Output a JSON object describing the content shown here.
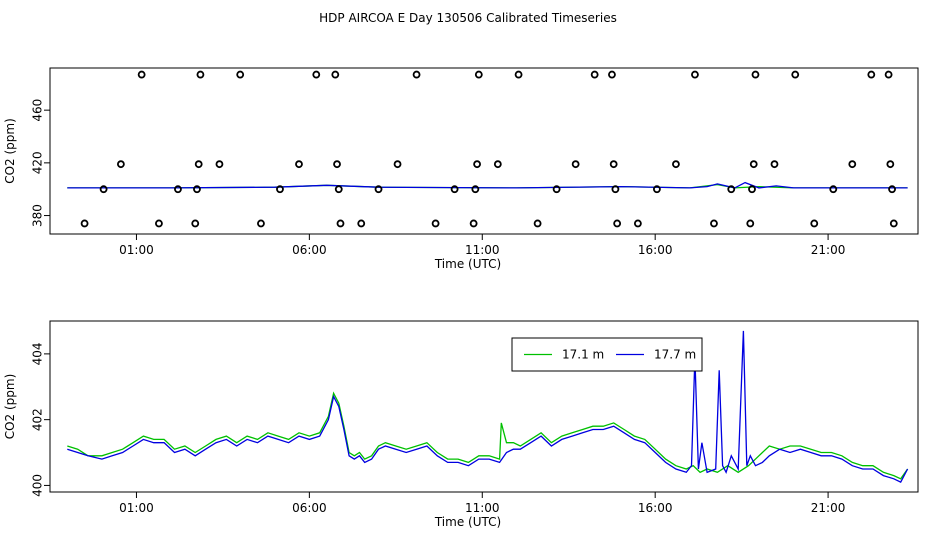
{
  "page_title": "HDP AIRCOA E  Day 130506  Calibrated Timeseries",
  "colors": {
    "green": "#00c000",
    "blue": "#0000e0",
    "black": "#000000"
  },
  "chart_data": [
    {
      "type": "scatter",
      "xlabel": "Time (UTC)",
      "ylabel": "CO2 (ppm)",
      "xlim": [
        -1.5,
        23.6
      ],
      "ylim": [
        366,
        492
      ],
      "x_ticks": [
        1,
        6,
        11,
        16,
        21
      ],
      "x_tick_labels": [
        "01:00",
        "06:00",
        "11:00",
        "16:00",
        "21:00"
      ],
      "y_ticks": [
        380,
        420,
        460
      ],
      "y_tick_labels": [
        "380",
        "420",
        "460"
      ],
      "points": [
        {
          "x": -0.5,
          "y": 374
        },
        {
          "x": 0.05,
          "y": 400
        },
        {
          "x": 0.55,
          "y": 419
        },
        {
          "x": 1.15,
          "y": 487
        },
        {
          "x": 1.65,
          "y": 374
        },
        {
          "x": 2.2,
          "y": 400
        },
        {
          "x": 2.7,
          "y": 374
        },
        {
          "x": 2.75,
          "y": 400
        },
        {
          "x": 2.8,
          "y": 419
        },
        {
          "x": 2.85,
          "y": 487
        },
        {
          "x": 3.4,
          "y": 419
        },
        {
          "x": 4.0,
          "y": 487
        },
        {
          "x": 4.6,
          "y": 374
        },
        {
          "x": 5.15,
          "y": 400
        },
        {
          "x": 5.7,
          "y": 419
        },
        {
          "x": 6.2,
          "y": 487
        },
        {
          "x": 6.75,
          "y": 487
        },
        {
          "x": 6.8,
          "y": 419
        },
        {
          "x": 6.85,
          "y": 400
        },
        {
          "x": 6.9,
          "y": 374
        },
        {
          "x": 7.5,
          "y": 374
        },
        {
          "x": 8.0,
          "y": 400
        },
        {
          "x": 8.55,
          "y": 419
        },
        {
          "x": 9.1,
          "y": 487
        },
        {
          "x": 9.65,
          "y": 374
        },
        {
          "x": 10.2,
          "y": 400
        },
        {
          "x": 10.75,
          "y": 374
        },
        {
          "x": 10.8,
          "y": 400
        },
        {
          "x": 10.85,
          "y": 419
        },
        {
          "x": 10.9,
          "y": 487
        },
        {
          "x": 11.45,
          "y": 419
        },
        {
          "x": 12.05,
          "y": 487
        },
        {
          "x": 12.6,
          "y": 374
        },
        {
          "x": 13.15,
          "y": 400
        },
        {
          "x": 13.7,
          "y": 419
        },
        {
          "x": 14.25,
          "y": 487
        },
        {
          "x": 14.75,
          "y": 487
        },
        {
          "x": 14.8,
          "y": 419
        },
        {
          "x": 14.85,
          "y": 400
        },
        {
          "x": 14.9,
          "y": 374
        },
        {
          "x": 15.5,
          "y": 374
        },
        {
          "x": 16.05,
          "y": 400
        },
        {
          "x": 16.6,
          "y": 419
        },
        {
          "x": 17.15,
          "y": 487
        },
        {
          "x": 17.7,
          "y": 374
        },
        {
          "x": 18.2,
          "y": 400
        },
        {
          "x": 18.75,
          "y": 374
        },
        {
          "x": 18.8,
          "y": 400
        },
        {
          "x": 18.85,
          "y": 419
        },
        {
          "x": 18.9,
          "y": 487
        },
        {
          "x": 19.45,
          "y": 419
        },
        {
          "x": 20.05,
          "y": 487
        },
        {
          "x": 20.6,
          "y": 374
        },
        {
          "x": 21.15,
          "y": 400
        },
        {
          "x": 21.7,
          "y": 419
        },
        {
          "x": 22.25,
          "y": 487
        },
        {
          "x": 22.75,
          "y": 487
        },
        {
          "x": 22.8,
          "y": 419
        },
        {
          "x": 22.85,
          "y": 400
        },
        {
          "x": 22.9,
          "y": 374
        }
      ],
      "series": [
        {
          "color": "#00c000",
          "x": [
            -1.0,
            2.0,
            5.0,
            6.5,
            8.0,
            12.0,
            15.0,
            17.0,
            17.8,
            18.3,
            19.0,
            20.0,
            22.0,
            23.3
          ],
          "y": [
            401,
            401,
            401.5,
            403,
            401.5,
            401,
            402,
            401,
            403.5,
            401,
            402,
            401,
            401,
            401
          ]
        },
        {
          "color": "#0000e0",
          "x": [
            -1.0,
            2.0,
            5.0,
            6.5,
            8.0,
            12.0,
            15.0,
            17.0,
            17.5,
            17.8,
            18.3,
            18.6,
            19.0,
            19.5,
            20.0,
            22.0,
            23.3
          ],
          "y": [
            401,
            401,
            401.5,
            403,
            401.5,
            401,
            402,
            401,
            402,
            404,
            401,
            405,
            401,
            402.5,
            401,
            401,
            401
          ]
        }
      ]
    },
    {
      "type": "line",
      "xlabel": "Time (UTC)",
      "ylabel": "CO2 (ppm)",
      "xlim": [
        -1.5,
        23.6
      ],
      "ylim": [
        399.8,
        405.0
      ],
      "x_ticks": [
        1,
        6,
        11,
        16,
        21
      ],
      "x_tick_labels": [
        "01:00",
        "06:00",
        "11:00",
        "16:00",
        "21:00"
      ],
      "y_ticks": [
        400,
        402,
        404
      ],
      "y_tick_labels": [
        "400",
        "402",
        "404"
      ],
      "legend": "top-right",
      "series": [
        {
          "name": "17.1 m",
          "color": "#00c000",
          "x": [
            -1.0,
            -0.7,
            -0.4,
            0.0,
            0.3,
            0.6,
            0.9,
            1.2,
            1.5,
            1.8,
            2.1,
            2.4,
            2.7,
            3.0,
            3.3,
            3.6,
            3.9,
            4.2,
            4.5,
            4.8,
            5.1,
            5.4,
            5.7,
            6.0,
            6.3,
            6.55,
            6.7,
            6.85,
            7.0,
            7.15,
            7.3,
            7.45,
            7.6,
            7.8,
            8.0,
            8.2,
            8.5,
            8.8,
            9.1,
            9.4,
            9.7,
            10.0,
            10.3,
            10.6,
            10.9,
            11.2,
            11.5,
            11.55,
            11.7,
            11.9,
            12.1,
            12.4,
            12.7,
            13.0,
            13.3,
            13.6,
            13.9,
            14.2,
            14.5,
            14.8,
            15.1,
            15.4,
            15.7,
            16.0,
            16.3,
            16.6,
            16.9,
            17.1,
            17.3,
            17.5,
            17.8,
            18.1,
            18.4,
            18.7,
            19.0,
            19.3,
            19.6,
            19.9,
            20.2,
            20.5,
            20.8,
            21.1,
            21.4,
            21.7,
            22.0,
            22.3,
            22.6,
            22.9,
            23.1,
            23.3
          ],
          "y": [
            401.2,
            401.1,
            400.9,
            400.9,
            401.0,
            401.1,
            401.3,
            401.5,
            401.4,
            401.4,
            401.1,
            401.2,
            401.0,
            401.2,
            401.4,
            401.5,
            401.3,
            401.5,
            401.4,
            401.6,
            401.5,
            401.4,
            401.6,
            401.5,
            401.6,
            402.1,
            402.8,
            402.5,
            401.8,
            401.0,
            400.9,
            401.0,
            400.8,
            400.9,
            401.2,
            401.3,
            401.2,
            401.1,
            401.2,
            401.3,
            401.0,
            400.8,
            400.8,
            400.7,
            400.9,
            400.9,
            400.8,
            401.9,
            401.3,
            401.3,
            401.2,
            401.4,
            401.6,
            401.3,
            401.5,
            401.6,
            401.7,
            401.8,
            401.8,
            401.9,
            401.7,
            401.5,
            401.4,
            401.1,
            400.8,
            400.6,
            400.5,
            400.6,
            400.4,
            400.5,
            400.4,
            400.6,
            400.4,
            400.6,
            400.9,
            401.2,
            401.1,
            401.2,
            401.2,
            401.1,
            401.0,
            401.0,
            400.9,
            400.7,
            400.6,
            400.6,
            400.4,
            400.3,
            400.2,
            400.5
          ]
        },
        {
          "name": "17.7 m",
          "color": "#0000e0",
          "x": [
            -1.0,
            -0.7,
            -0.4,
            0.0,
            0.3,
            0.6,
            0.9,
            1.2,
            1.5,
            1.8,
            2.1,
            2.4,
            2.7,
            3.0,
            3.3,
            3.6,
            3.9,
            4.2,
            4.5,
            4.8,
            5.1,
            5.4,
            5.7,
            6.0,
            6.3,
            6.55,
            6.7,
            6.85,
            7.0,
            7.15,
            7.3,
            7.45,
            7.6,
            7.8,
            8.0,
            8.2,
            8.5,
            8.8,
            9.1,
            9.4,
            9.7,
            10.0,
            10.3,
            10.6,
            10.9,
            11.2,
            11.5,
            11.7,
            11.9,
            12.1,
            12.4,
            12.7,
            13.0,
            13.3,
            13.6,
            13.9,
            14.2,
            14.5,
            14.8,
            15.1,
            15.4,
            15.7,
            16.0,
            16.3,
            16.6,
            16.9,
            17.05,
            17.15,
            17.25,
            17.35,
            17.5,
            17.75,
            17.85,
            17.95,
            18.05,
            18.2,
            18.4,
            18.55,
            18.65,
            18.75,
            18.9,
            19.1,
            19.3,
            19.6,
            19.9,
            20.2,
            20.5,
            20.8,
            21.1,
            21.4,
            21.7,
            22.0,
            22.3,
            22.6,
            22.9,
            23.1,
            23.3
          ],
          "y": [
            401.1,
            401.0,
            400.9,
            400.8,
            400.9,
            401.0,
            401.2,
            401.4,
            401.3,
            401.3,
            401.0,
            401.1,
            400.9,
            401.1,
            401.3,
            401.4,
            401.2,
            401.4,
            401.3,
            401.5,
            401.4,
            401.3,
            401.5,
            401.4,
            401.5,
            402.0,
            402.7,
            402.4,
            401.7,
            400.9,
            400.8,
            400.9,
            400.7,
            400.8,
            401.1,
            401.2,
            401.1,
            401.0,
            401.1,
            401.2,
            400.9,
            400.7,
            400.7,
            400.6,
            400.8,
            400.8,
            400.7,
            401.0,
            401.1,
            401.1,
            401.3,
            401.5,
            401.2,
            401.4,
            401.5,
            401.6,
            401.7,
            401.7,
            401.8,
            401.6,
            401.4,
            401.3,
            401.0,
            400.7,
            400.5,
            400.4,
            400.6,
            403.9,
            400.5,
            401.3,
            400.4,
            400.5,
            403.5,
            400.6,
            400.4,
            400.9,
            400.5,
            404.7,
            400.6,
            400.9,
            400.6,
            400.7,
            400.9,
            401.1,
            401.0,
            401.1,
            401.0,
            400.9,
            400.9,
            400.8,
            400.6,
            400.5,
            400.5,
            400.3,
            400.2,
            400.1,
            400.5
          ]
        }
      ]
    }
  ]
}
